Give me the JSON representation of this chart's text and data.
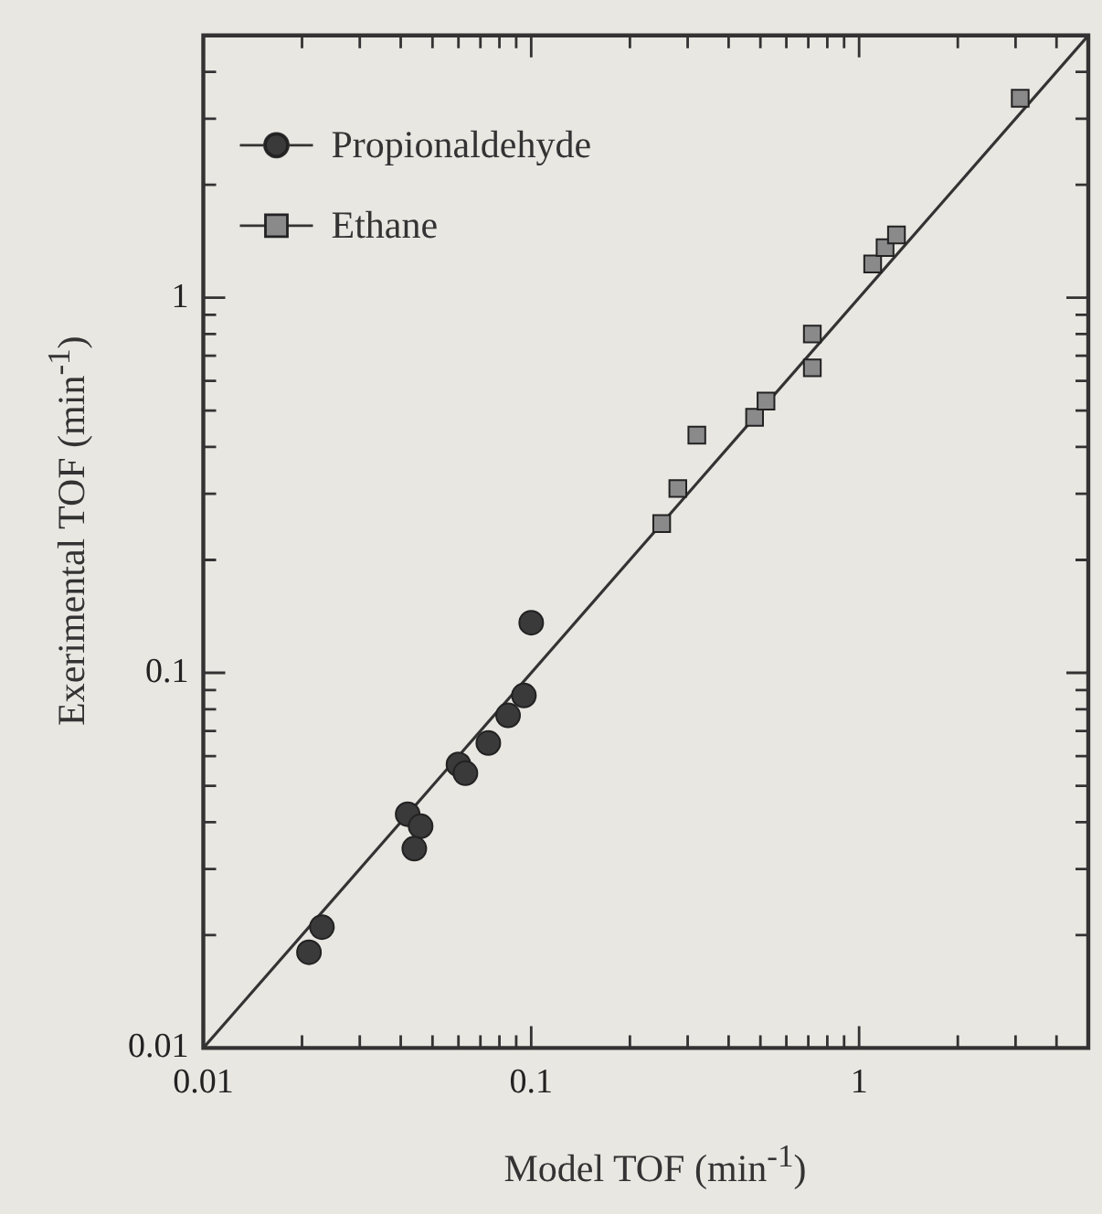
{
  "chart_data": {
    "type": "scatter",
    "xlabel": "Model TOF (min$^{-1}$)",
    "ylabel": "Exerimental TOF (min$^{-1}$)",
    "log": "xy",
    "legend": "top left",
    "grid": false,
    "xlim": [
      0.01,
      5
    ],
    "ylim": [
      0.01,
      5
    ],
    "xticks": [
      0.01,
      {
        "value": 0.02,
        "label": null
      },
      {
        "value": 0.03,
        "label": null
      },
      {
        "value": 0.04,
        "label": null
      },
      {
        "value": 0.05,
        "label": null
      },
      {
        "value": 0.06,
        "label": null
      },
      {
        "value": 0.07,
        "label": null
      },
      {
        "value": 0.08,
        "label": null
      },
      {
        "value": 0.09,
        "label": null
      },
      0.1,
      {
        "value": 0.2,
        "label": null
      },
      {
        "value": 0.3,
        "label": null
      },
      {
        "value": 0.4,
        "label": null
      },
      {
        "value": 0.5,
        "label": null
      },
      {
        "value": 0.6,
        "label": null
      },
      {
        "value": 0.7,
        "label": null
      },
      {
        "value": 0.8,
        "label": null
      },
      {
        "value": 0.9,
        "label": null
      },
      1,
      {
        "value": 2,
        "label": null
      },
      {
        "value": 3,
        "label": null
      },
      {
        "value": 4,
        "label": null
      }
    ],
    "yticks": [
      0.01,
      {
        "value": 0.02,
        "label": null
      },
      {
        "value": 0.03,
        "label": null
      },
      {
        "value": 0.04,
        "label": null
      },
      {
        "value": 0.05,
        "label": null
      },
      {
        "value": 0.06,
        "label": null
      },
      {
        "value": 0.07,
        "label": null
      },
      {
        "value": 0.08,
        "label": null
      },
      {
        "value": 0.09,
        "label": null
      },
      0.1,
      {
        "value": 0.2,
        "label": null
      },
      {
        "value": 0.3,
        "label": null
      },
      {
        "value": 0.4,
        "label": null
      },
      {
        "value": 0.5,
        "label": null
      },
      {
        "value": 0.6,
        "label": null
      },
      {
        "value": 0.7,
        "label": null
      },
      {
        "value": 0.8,
        "label": null
      },
      {
        "value": 0.9,
        "label": null
      },
      1,
      {
        "value": 2,
        "label": null
      },
      {
        "value": 3,
        "label": null
      },
      {
        "value": 4,
        "label": null
      }
    ],
    "series": [
      {
        "name": "Propionaldehyde",
        "color": "#3a3a3a",
        "marker": "circle",
        "x": [
          0.021,
          0.023,
          0.042,
          0.046,
          0.044,
          0.06,
          0.063,
          0.074,
          0.085,
          0.095,
          0.1
        ],
        "values": [
          0.018,
          0.021,
          0.042,
          0.039,
          0.034,
          0.057,
          0.054,
          0.065,
          0.077,
          0.087,
          0.136
        ]
      },
      {
        "name": "Ethane",
        "color": "#8a8a8a",
        "marker": "square",
        "x": [
          0.25,
          0.28,
          0.32,
          0.48,
          0.52,
          0.72,
          0.72,
          1.1,
          1.2,
          1.3,
          3.1
        ],
        "values": [
          0.25,
          0.31,
          0.43,
          0.48,
          0.53,
          0.8,
          0.65,
          1.23,
          1.36,
          1.47,
          3.4
        ]
      },
      {
        "type": "line",
        "color": "#333333",
        "marker": "none",
        "x": [
          0.01,
          5
        ],
        "values": [
          0.01,
          5
        ]
      }
    ]
  }
}
